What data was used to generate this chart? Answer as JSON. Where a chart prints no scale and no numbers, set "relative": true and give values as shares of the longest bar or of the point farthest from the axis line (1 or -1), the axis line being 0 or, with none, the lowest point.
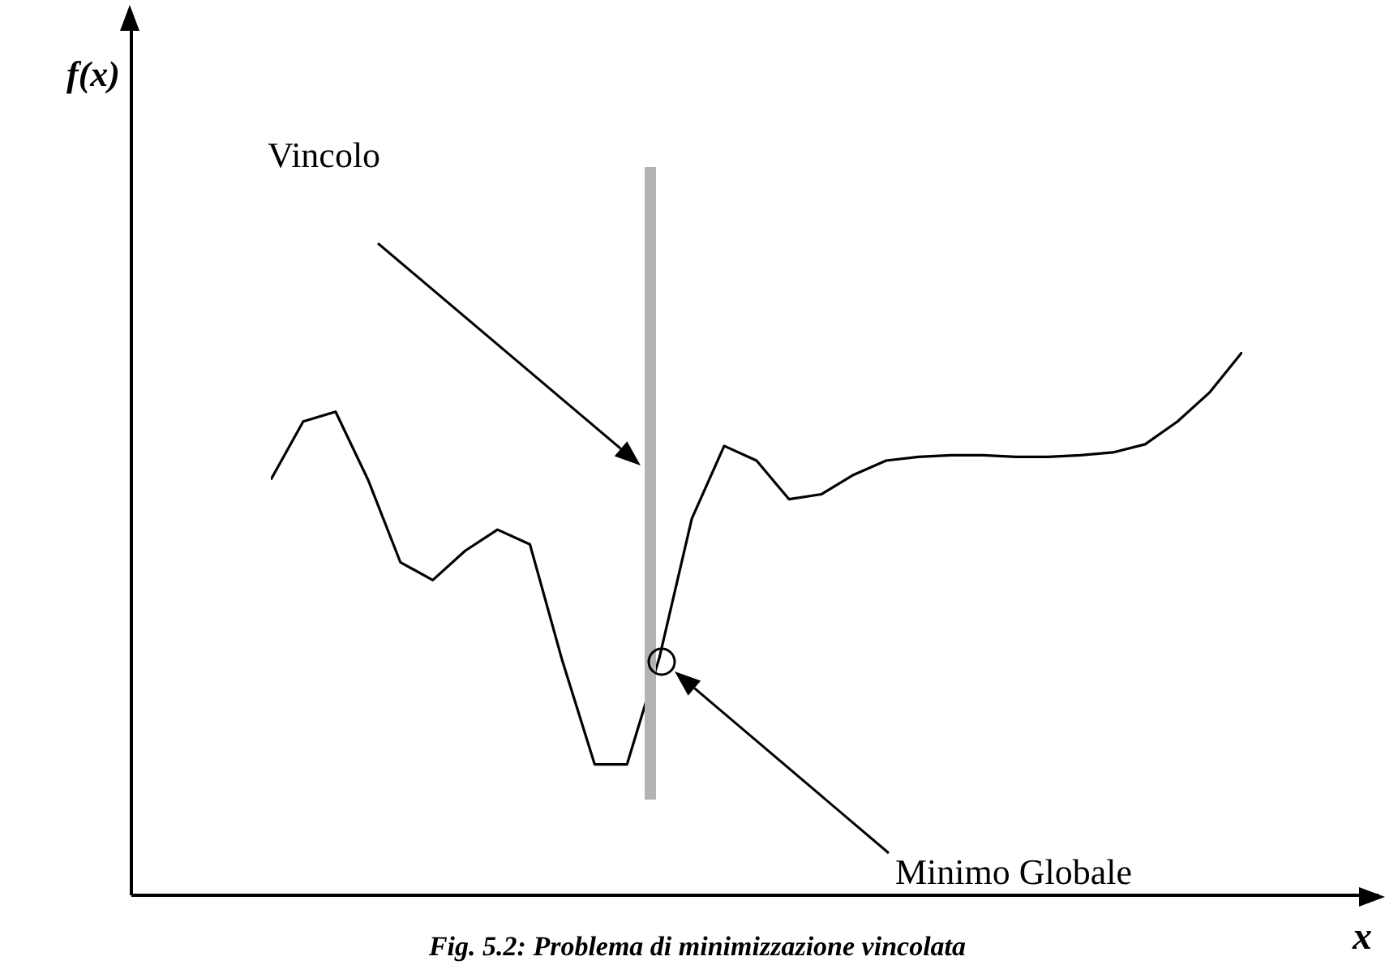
{
  "chart_data": {
    "type": "line",
    "relative": true,
    "title": "Fig. 5.2: Problema di minimizzazione vincolata",
    "xlabel": "x",
    "categories": [
      null,
      null,
      null,
      null,
      null,
      null,
      null,
      null,
      null,
      null,
      null,
      null,
      null,
      null,
      null,
      null,
      null,
      null,
      null,
      null,
      null,
      null,
      null,
      null,
      null,
      null,
      null,
      null,
      null,
      null,
      null
    ],
    "series": [
      {
        "color": "#000000",
        "values": [
          0.765,
          0.872,
          0.89,
          0.765,
          0.613,
          0.58,
          0.634,
          0.673,
          0.646,
          0.432,
          0.241,
          0.241,
          0.4375,
          0.693,
          0.827,
          0.8,
          0.729,
          0.738,
          0.774,
          0.8,
          0.807,
          0.81,
          0.81,
          0.807,
          0.807,
          0.81,
          0.815,
          0.83,
          0.872,
          0.926,
          1
        ]
      }
    ],
    "annotations": [
      "Vincolo",
      "Minimo Globale",
      "f(x)"
    ],
    "grid": false,
    "legend": false,
    "marker": "none",
    "line_style": "solid",
    "tick_labels": false
  }
}
